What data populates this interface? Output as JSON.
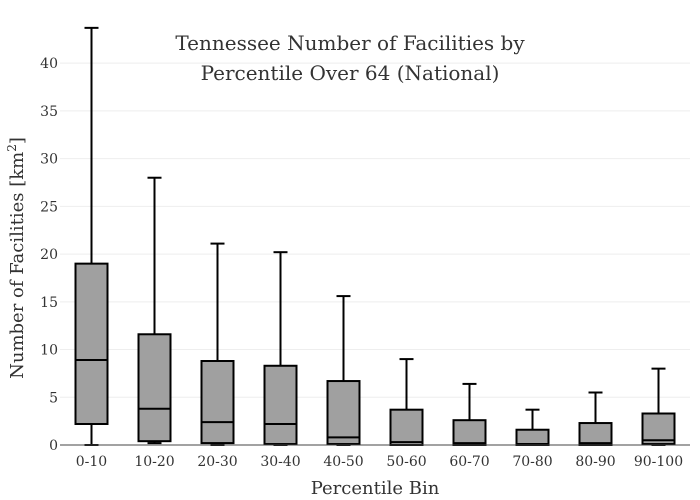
{
  "chart_data": {
    "type": "box",
    "title_lines": [
      "Tennessee Number of Facilities by",
      "Percentile Over 64 (National)"
    ],
    "xlabel": "Percentile Bin",
    "ylabel_main": "Number of Facilities  [km",
    "ylabel_sup": "2",
    "ylabel_end": "]",
    "ylim": [
      0,
      44
    ],
    "yticks": [
      0,
      5,
      10,
      15,
      20,
      25,
      30,
      35,
      40
    ],
    "grid": true,
    "categories": [
      "0-10",
      "10-20",
      "20-30",
      "30-40",
      "40-50",
      "50-60",
      "60-70",
      "70-80",
      "80-90",
      "90-100"
    ],
    "boxes": [
      {
        "min": 0,
        "q1": 2.2,
        "median": 8.9,
        "q3": 19.0,
        "max": 43.7
      },
      {
        "min": 0.2,
        "q1": 0.4,
        "median": 3.8,
        "q3": 11.6,
        "max": 28.0
      },
      {
        "min": 0,
        "q1": 0.2,
        "median": 2.4,
        "q3": 8.8,
        "max": 21.1
      },
      {
        "min": 0,
        "q1": 0.1,
        "median": 2.2,
        "q3": 8.3,
        "max": 20.2
      },
      {
        "min": 0,
        "q1": 0.1,
        "median": 0.8,
        "q3": 6.7,
        "max": 15.6
      },
      {
        "min": 0,
        "q1": 0,
        "median": 0.3,
        "q3": 3.7,
        "max": 9.0
      },
      {
        "min": 0,
        "q1": 0,
        "median": 0.2,
        "q3": 2.6,
        "max": 6.4
      },
      {
        "min": 0,
        "q1": 0,
        "median": 0.1,
        "q3": 1.6,
        "max": 3.7
      },
      {
        "min": 0,
        "q1": 0,
        "median": 0.2,
        "q3": 2.3,
        "max": 5.5
      },
      {
        "min": 0,
        "q1": 0.1,
        "median": 0.5,
        "q3": 3.3,
        "max": 8.0
      }
    ]
  }
}
